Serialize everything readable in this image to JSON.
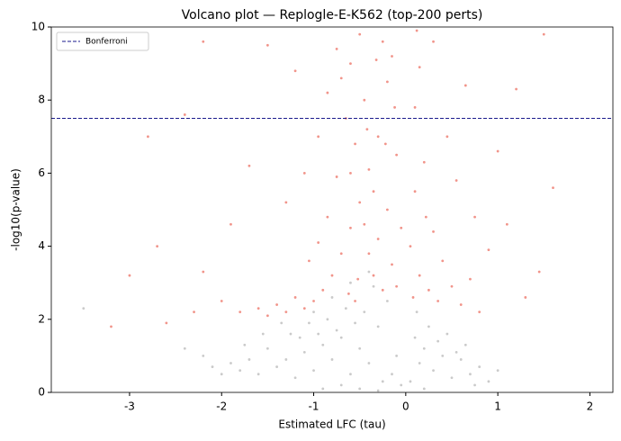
{
  "chart_data": {
    "type": "scatter",
    "title": "Volcano plot — Replogle-E-K562 (top-200 perts)",
    "x_label": "Estimated LFC (tau)",
    "y_label": "-log10(p-value)",
    "xlim": [
      -3.85,
      2.25
    ],
    "ylim": [
      0,
      10
    ],
    "xticks": [
      -3,
      -2,
      -1,
      0,
      1,
      2
    ],
    "yticks": [
      0,
      2,
      4,
      6,
      8,
      10
    ],
    "legend_position": "upper left",
    "hlines": [
      {
        "value": 7.5,
        "label": "Bonferroni",
        "color": "#1a1a8c"
      }
    ],
    "series": [
      {
        "color": "#a6a6a6",
        "x": [
          -0.5,
          -0.4,
          -0.3,
          -0.6,
          -0.7,
          -0.2,
          -0.1,
          -0.8,
          -0.9,
          -1.0,
          -1.1,
          -1.2,
          -1.3,
          -1.4,
          -1.5,
          -1.6,
          -1.7,
          -1.8,
          -1.9,
          -2.0,
          -2.1,
          -0.35,
          -0.45,
          -0.55,
          -0.65,
          -0.75,
          -0.85,
          -0.95,
          -1.05,
          -1.15,
          -1.25,
          -0.25,
          -0.15,
          -0.05,
          -0.5,
          -0.3,
          0.05,
          0.1,
          0.15,
          0.2,
          0.3,
          0.4,
          0.5,
          0.6,
          0.7,
          0.8,
          0.9,
          0.25,
          0.35,
          0.45,
          0.55,
          0.65,
          0.75,
          0.2,
          -0.4,
          -0.6,
          -0.8,
          -1.0,
          -1.35,
          -1.55,
          -1.75,
          -2.2,
          -3.5,
          -2.4,
          -0.7,
          -0.9,
          1.0,
          0.12
        ],
        "y": [
          1.2,
          0.8,
          1.8,
          0.5,
          1.5,
          2.5,
          1.0,
          0.9,
          1.3,
          0.6,
          1.1,
          0.4,
          0.9,
          0.7,
          1.2,
          0.5,
          0.9,
          0.6,
          0.8,
          0.5,
          0.7,
          2.9,
          2.2,
          1.9,
          2.3,
          1.7,
          2.0,
          1.6,
          1.9,
          1.5,
          1.6,
          0.3,
          0.5,
          0.2,
          0.1,
          0.05,
          0.3,
          1.5,
          0.8,
          1.2,
          0.6,
          1.0,
          0.4,
          0.9,
          0.5,
          0.7,
          0.3,
          1.8,
          1.4,
          1.6,
          1.1,
          1.3,
          0.2,
          0.1,
          3.3,
          3.0,
          2.6,
          2.2,
          1.9,
          1.6,
          1.3,
          1.0,
          2.3,
          1.2,
          0.2,
          0.1,
          0.6,
          2.2
        ]
      },
      {
        "color": "#e84c3c",
        "x": [
          -0.5,
          -0.4,
          -0.3,
          -0.6,
          -0.7,
          -0.2,
          -0.25,
          -0.45,
          -0.55,
          -0.35,
          -0.15,
          -0.1,
          -0.8,
          -0.9,
          -1.0,
          -1.1,
          -1.2,
          -1.3,
          -0.65,
          -0.75,
          -0.85,
          -0.95,
          -1.05,
          -0.6,
          -0.7,
          -0.5,
          -0.4,
          -0.3,
          -0.2,
          -0.15,
          -0.1,
          -0.05,
          -0.12,
          -0.22,
          -0.32,
          -0.42,
          -0.52,
          -0.62,
          -1.4,
          -1.5,
          -1.6,
          -1.8,
          -2.0,
          -2.3,
          -2.6,
          -3.0,
          -3.2,
          -2.7,
          -2.2,
          -1.9,
          -1.3,
          -1.1,
          -0.95,
          -0.85,
          -0.75,
          -1.2,
          -1.5,
          -2.2,
          -2.4,
          -2.8,
          -1.7,
          -0.6,
          -0.45,
          -0.35,
          -0.25,
          -0.55,
          0.05,
          0.1,
          0.15,
          0.2,
          0.25,
          0.3,
          0.35,
          0.4,
          0.5,
          0.6,
          0.7,
          0.8,
          0.1,
          0.15,
          0.3,
          0.45,
          0.55,
          0.75,
          0.9,
          1.0,
          1.2,
          1.5,
          1.6,
          1.3,
          0.08,
          0.12,
          0.22,
          0.65,
          1.1,
          1.45
        ],
        "y": [
          5.2,
          6.1,
          7.0,
          4.5,
          3.8,
          8.5,
          9.6,
          8.0,
          6.8,
          5.5,
          9.2,
          6.5,
          3.2,
          2.8,
          2.5,
          2.3,
          2.6,
          2.2,
          7.5,
          5.9,
          4.8,
          4.1,
          3.6,
          9.0,
          8.6,
          9.8,
          3.8,
          4.2,
          5.0,
          3.5,
          2.9,
          4.5,
          7.8,
          6.8,
          9.1,
          7.2,
          3.1,
          2.7,
          2.4,
          2.1,
          2.3,
          2.2,
          2.5,
          2.2,
          1.9,
          3.2,
          1.8,
          4.0,
          3.3,
          4.6,
          5.2,
          6.0,
          7.0,
          8.2,
          9.4,
          8.8,
          9.5,
          9.6,
          7.6,
          7.0,
          6.2,
          6.0,
          4.6,
          3.2,
          2.8,
          2.5,
          4.0,
          5.5,
          3.2,
          6.3,
          2.8,
          4.4,
          2.5,
          3.6,
          2.9,
          2.4,
          3.1,
          2.2,
          7.8,
          8.9,
          9.6,
          7.0,
          5.8,
          4.8,
          3.9,
          6.6,
          8.3,
          9.8,
          5.6,
          2.6,
          2.6,
          9.9,
          4.8,
          8.4,
          4.6,
          3.3
        ]
      }
    ]
  }
}
